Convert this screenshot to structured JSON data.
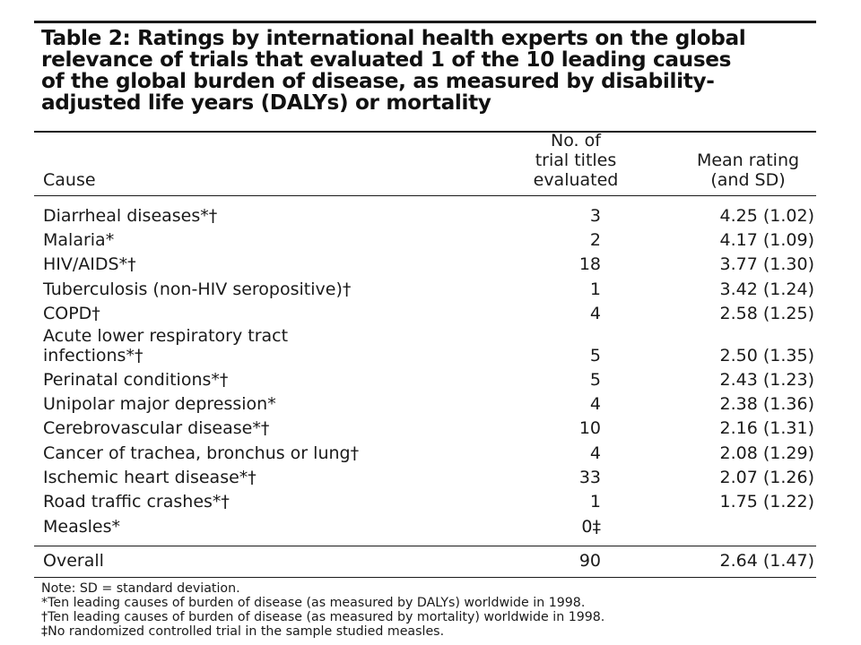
{
  "table": {
    "title": "Table 2: Ratings by international health experts on the global\nrelevance of trials that evaluated 1 of the 10 leading causes\nof the global burden of disease, as measured by disability-\nadjusted life years (DALYs) or mortality",
    "headers": {
      "cause": "Cause",
      "trials": "No. of\ntrial titles\nevaluated",
      "rating": "Mean rating\n(and SD)"
    },
    "rows": [
      {
        "cause": "Diarrheal diseases*†",
        "trials": "3",
        "rating": "4.25 (1.02)"
      },
      {
        "cause": "Malaria*",
        "trials": "2",
        "rating": "4.17 (1.09)"
      },
      {
        "cause": "HIV/AIDS*†",
        "trials": "18",
        "rating": "3.77 (1.30)"
      },
      {
        "cause": "Tuberculosis (non-HIV seropositive)†",
        "trials": "1",
        "rating": "3.42 (1.24)"
      },
      {
        "cause": "COPD†",
        "trials": "4",
        "rating": "2.58 (1.25)"
      },
      {
        "cause": "Acute lower respiratory tract",
        "trials": "",
        "rating": ""
      },
      {
        "cause": "infections*†",
        "trials": "5",
        "rating": "2.50 (1.35)"
      },
      {
        "cause": "Perinatal conditions*†",
        "trials": "5",
        "rating": "2.43 (1.23)"
      },
      {
        "cause": "Unipolar major depression*",
        "trials": "4",
        "rating": "2.38 (1.36)"
      },
      {
        "cause": "Cerebrovascular disease*†",
        "trials": "10",
        "rating": "2.16 (1.31)"
      },
      {
        "cause": "Cancer of trachea, bronchus or lung†",
        "trials": "4",
        "rating": "2.08 (1.29)"
      },
      {
        "cause": "Ischemic heart disease*†",
        "trials": "33",
        "rating": "2.07 (1.26)"
      },
      {
        "cause": "Road traffic crashes*†",
        "trials": "1",
        "rating": "1.75 (1.22)"
      },
      {
        "cause": "Measles*",
        "trials": "0‡",
        "rating": ""
      }
    ],
    "overall": {
      "cause": "Overall",
      "trials": "90",
      "rating": "2.64 (1.47)"
    },
    "notes": [
      "Note: SD = standard deviation.",
      "*Ten leading causes of burden of disease (as measured by DALYs) worldwide in 1998.",
      "†Ten leading causes of burden of disease (as measured by mortality) worldwide in 1998.",
      "‡No randomized controlled trial in the sample studied measles."
    ]
  }
}
